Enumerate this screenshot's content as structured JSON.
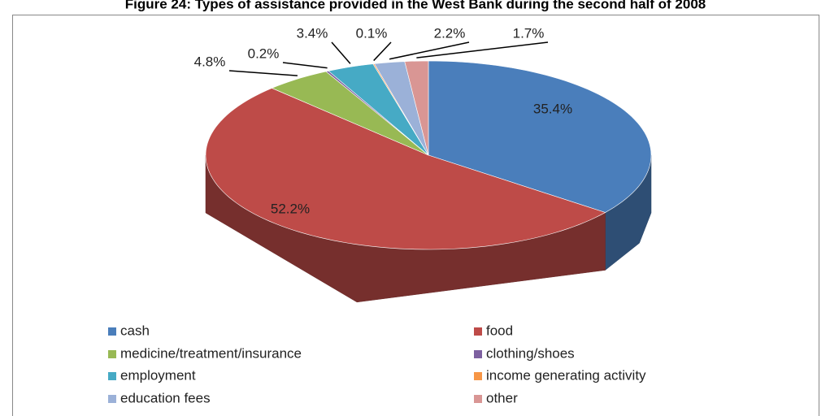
{
  "chart_data": {
    "type": "pie",
    "title": "Figure 24: Types of assistance provided in the West Bank during the second half of 2008",
    "categories": [
      "cash",
      "food",
      "medicine/treatment/insurance",
      "clothing/shoes",
      "employment",
      "income generating activity",
      "education fees",
      "other"
    ],
    "values": [
      35.4,
      52.2,
      4.8,
      0.2,
      3.4,
      0.1,
      2.2,
      1.7
    ],
    "value_labels": [
      "35.4%",
      "52.2%",
      "4.8%",
      "0.2%",
      "3.4%",
      "0.1%",
      "2.2%",
      "1.7%"
    ],
    "colors": [
      "#4a7ebb",
      "#be4b48",
      "#98b954",
      "#7d60a0",
      "#46aac5",
      "#f79646",
      "#9bb1d8",
      "#d99694"
    ],
    "legend": "bottom"
  }
}
